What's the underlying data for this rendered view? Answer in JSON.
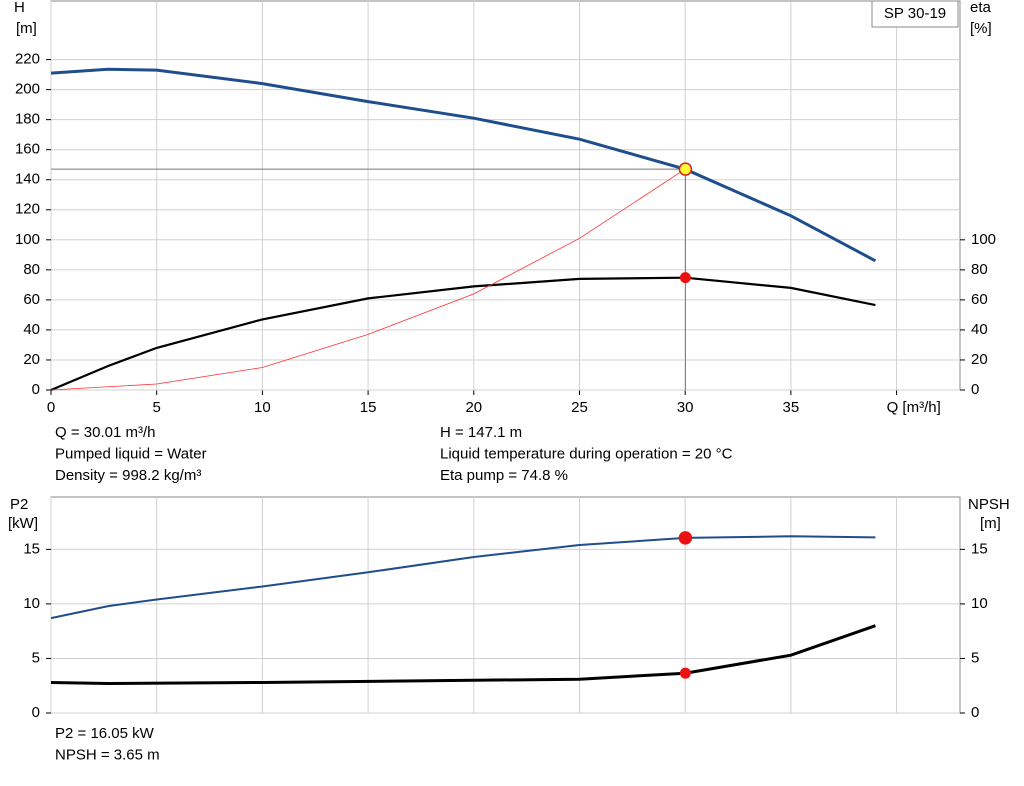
{
  "chart_data": [
    {
      "type": "line",
      "legend": "SP 30-19",
      "grid": true,
      "y_label": "H",
      "y_unit": "[m]",
      "y2_label": "eta",
      "y2_unit": "[%]",
      "xlim": [
        0,
        43
      ],
      "ylim": [
        0,
        259
      ],
      "y2lim": [
        0,
        259
      ],
      "xticks": [
        0,
        5,
        10,
        15,
        20,
        25,
        30,
        35,
        {
          "value": 40,
          "label": "Q [m³/h]"
        }
      ],
      "yticks": [
        0,
        20,
        40,
        60,
        80,
        100,
        120,
        140,
        160,
        180,
        200,
        220
      ],
      "y2ticks": [
        0,
        20,
        40,
        60,
        80,
        100
      ],
      "series": [
        {
          "color": "#1f4e8c",
          "width": 3,
          "x": [
            0,
            2.7,
            5,
            10,
            15,
            20,
            25,
            30,
            35,
            39
          ],
          "values": [
            211,
            213.5,
            213,
            204,
            192,
            181,
            167,
            147,
            116,
            86
          ]
        },
        {
          "color": "#000000",
          "width": 2.2,
          "axis": "y2",
          "x": [
            0,
            2.7,
            5,
            10,
            15,
            20,
            25,
            30,
            35,
            39
          ],
          "values": [
            0,
            16,
            28,
            47,
            61,
            69,
            74,
            74.8,
            68,
            56.5
          ]
        },
        {
          "color": "#ff3030",
          "width": 0.8,
          "x": [
            0,
            5,
            10,
            15,
            20,
            25,
            30
          ],
          "values": [
            0,
            4,
            15,
            37,
            64,
            101,
            147.1
          ]
        }
      ],
      "operating_point": {
        "x": 30.01,
        "y": 147.1,
        "y2": 74.8
      },
      "info": {
        "left": [
          "Q = 30.01 m³/h",
          "Pumped liquid = Water",
          "Density = 998.2 kg/m³"
        ],
        "right": [
          "H = 147.1 m",
          "Liquid temperature during operation = 20 °C",
          "Eta pump = 74.8 %"
        ]
      }
    },
    {
      "type": "line",
      "grid": true,
      "y_label": "P2",
      "y_unit": "[kW]",
      "y2_label": "NPSH",
      "y2_unit": "[m]",
      "xlim": [
        0,
        43
      ],
      "ylim": [
        0,
        19.8
      ],
      "y2lim": [
        0,
        19.8
      ],
      "xticks": [
        0,
        5,
        10,
        15,
        20,
        25,
        30,
        35,
        40
      ],
      "yticks": [
        0,
        5,
        10,
        15
      ],
      "y2ticks": [
        0,
        5,
        10,
        15
      ],
      "series": [
        {
          "color": "#1f4e8c",
          "width": 2,
          "x": [
            0,
            2.7,
            5,
            10,
            15,
            20,
            25,
            30,
            35,
            39
          ],
          "values": [
            8.7,
            9.8,
            10.4,
            11.6,
            12.9,
            14.3,
            15.4,
            16.05,
            16.2,
            16.1
          ]
        },
        {
          "color": "#000000",
          "width": 3,
          "axis": "y2",
          "x": [
            0,
            2.7,
            10,
            20,
            25,
            30,
            35,
            39
          ],
          "values": [
            2.8,
            2.7,
            2.8,
            3.0,
            3.1,
            3.65,
            5.3,
            8.0
          ]
        }
      ],
      "operating_point": {
        "x": 30.01,
        "y": 16.05,
        "y2": 3.65
      },
      "info": {
        "left": [
          "P2 = 16.05 kW",
          "NPSH = 3.65 m"
        ],
        "right": []
      }
    }
  ]
}
